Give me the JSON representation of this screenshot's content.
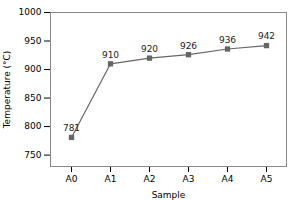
{
  "chart_data": {
    "type": "line",
    "categories": [
      "A0",
      "A1",
      "A2",
      "A3",
      "A4",
      "A5"
    ],
    "values": [
      781,
      910,
      920,
      926,
      936,
      942
    ],
    "xlabel": "Sample",
    "ylabel": "Temperature (°C)",
    "ylim": [
      730,
      1000
    ],
    "yticks": [
      750,
      800,
      850,
      900,
      950,
      1000
    ],
    "color": "#666666",
    "marker": "square",
    "data_labels": true,
    "grid": false
  }
}
